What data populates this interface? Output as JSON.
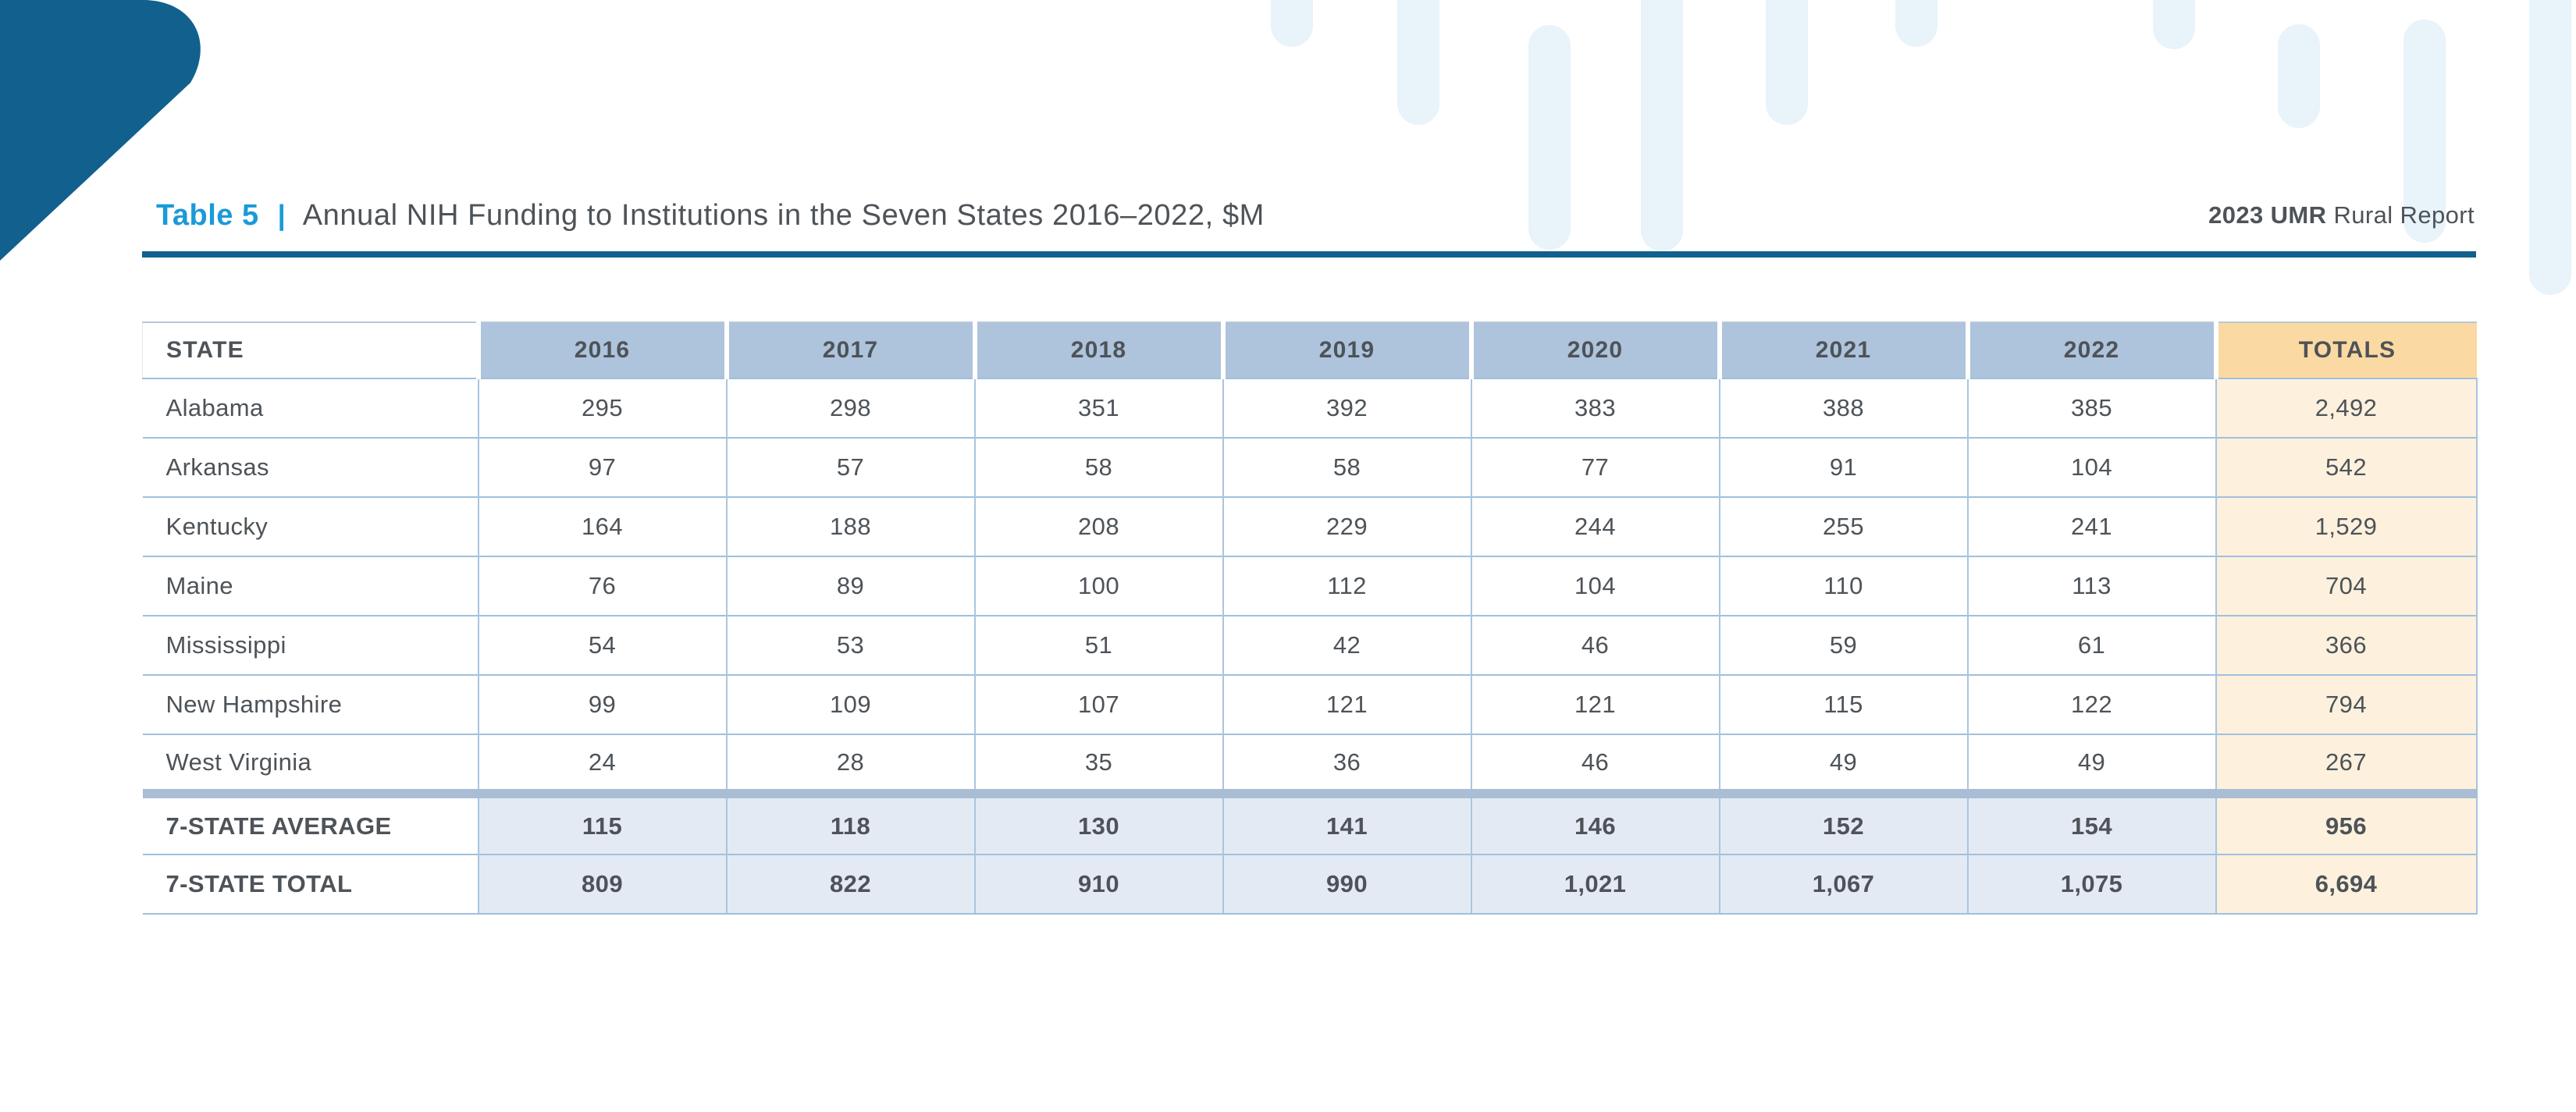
{
  "page": {
    "title": {
      "label": "Table 5",
      "separator": "|",
      "text": "Annual NIH Funding to Institutions in the Seven States 2016–2022, $M"
    },
    "report_tag": {
      "bold": "2023 UMR",
      "regular": " Rural Report"
    }
  },
  "table": {
    "columns": [
      "STATE",
      "2016",
      "2017",
      "2018",
      "2019",
      "2020",
      "2021",
      "2022",
      "TOTALS"
    ],
    "rows": [
      {
        "cells": [
          "Alabama",
          "295",
          "298",
          "351",
          "392",
          "383",
          "388",
          "385",
          "2,492"
        ]
      },
      {
        "cells": [
          "Arkansas",
          "97",
          "57",
          "58",
          "58",
          "77",
          "91",
          "104",
          "542"
        ]
      },
      {
        "cells": [
          "Kentucky",
          "164",
          "188",
          "208",
          "229",
          "244",
          "255",
          "241",
          "1,529"
        ]
      },
      {
        "cells": [
          "Maine",
          "76",
          "89",
          "100",
          "112",
          "104",
          "110",
          "113",
          "704"
        ]
      },
      {
        "cells": [
          "Mississippi",
          "54",
          "53",
          "51",
          "42",
          "46",
          "59",
          "61",
          "366"
        ]
      },
      {
        "cells": [
          "New Hampshire",
          "99",
          "109",
          "107",
          "121",
          "121",
          "115",
          "122",
          "794"
        ]
      },
      {
        "cells": [
          "West Virginia",
          "24",
          "28",
          "35",
          "36",
          "46",
          "49",
          "49",
          "267"
        ]
      }
    ],
    "summary_rows": [
      {
        "cells": [
          "7-STATE AVERAGE",
          "115",
          "118",
          "130",
          "141",
          "146",
          "152",
          "154",
          "956"
        ]
      },
      {
        "cells": [
          "7-STATE TOTAL",
          "809",
          "822",
          "910",
          "990",
          "1,021",
          "1,067",
          "1,075",
          "6,694"
        ]
      }
    ]
  },
  "colors": {
    "accent_blue": "#1b9ad8",
    "rule_blue": "#11608e",
    "corner_blue": "#11608e",
    "header_fill": "#aec3dc",
    "totals_header_fill": "#fbd9a2",
    "totals_fill": "#fdf1dd",
    "summary_fill": "#e4eaf4",
    "band_fill": "#a9bed4",
    "grid_blue": "#9fc0dd",
    "text_dark": "#4d5358",
    "decor_bar": "#e8f3fa"
  }
}
